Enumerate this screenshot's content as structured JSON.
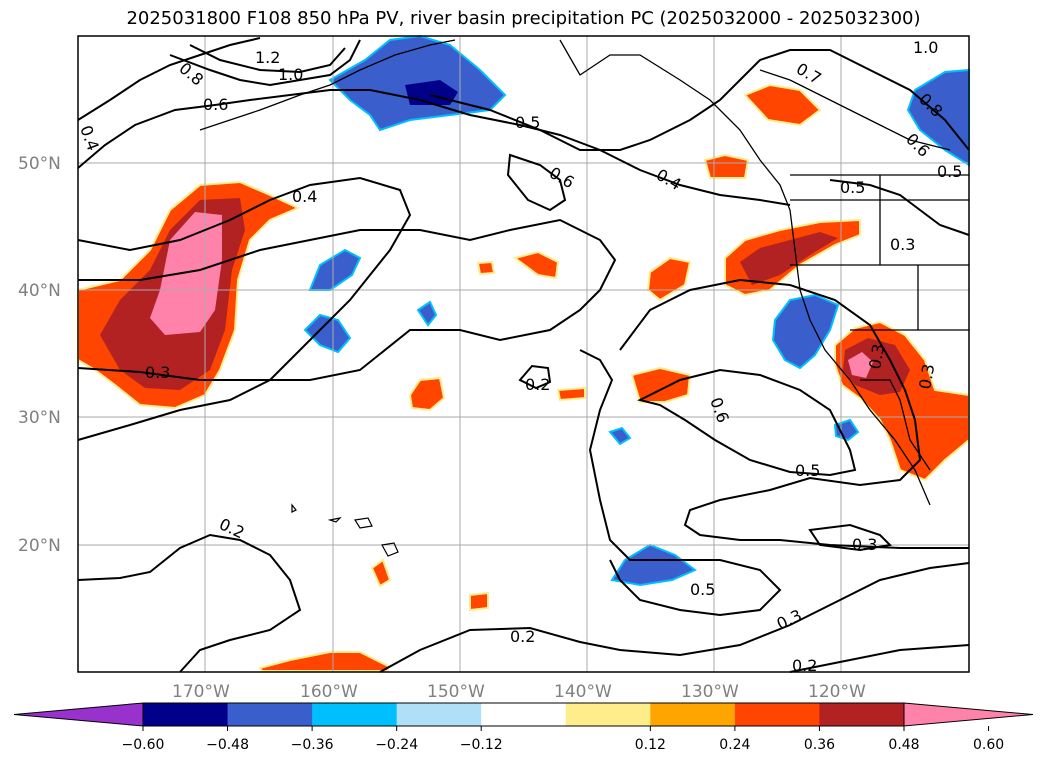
{
  "title": "2025031800 F108 850 hPa PV, river basin precipitation PC (2025032000 - 2025032300)",
  "lat_labels": [
    "50°N",
    "40°N",
    "30°N",
    "20°N"
  ],
  "lon_labels": [
    "170°W",
    "160°W",
    "150°W",
    "140°W",
    "130°W",
    "120°W"
  ],
  "colorbar": {
    "ticks": [
      "−0.60",
      "−0.48",
      "−0.36",
      "−0.24",
      "−0.12",
      "0.12",
      "0.24",
      "0.36",
      "0.48",
      "0.60"
    ],
    "colors": [
      "#9932cc",
      "#00008b",
      "#3a5fcd",
      "#00bfff",
      "#b0e0f8",
      "#ffffff",
      "#ffec8b",
      "#ffa500",
      "#ff4500",
      "#b22222",
      "#ff82ab"
    ]
  },
  "contour_labels": [
    "1.2",
    "1.0",
    "0.8",
    "0.6",
    "0.4",
    "0.5",
    "0.6",
    "0.4",
    "0.7",
    "1.0",
    "0.8",
    "0.6",
    "0.5",
    "0.5",
    "0.3",
    "0.4",
    "0.3",
    "0.2",
    "0.6",
    "0.5",
    "0.2",
    "0.3",
    "0.5",
    "0.3",
    "0.2",
    "0.2",
    "0.3",
    "0.3"
  ]
}
